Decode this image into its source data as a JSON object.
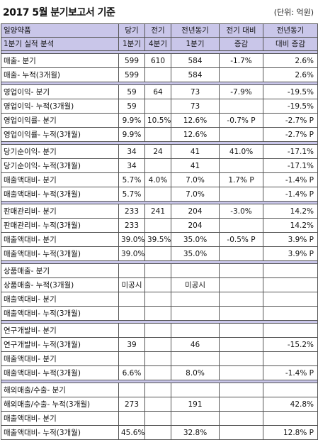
{
  "title": "2017 5월 분기보고서 기준",
  "unit": "(단위: 억원)",
  "header": {
    "row1": [
      "일양약품",
      "당기",
      "전기",
      "전년동기",
      "전기 대비",
      "전년동기"
    ],
    "row2": [
      "1분기 실적 분석",
      "1분기",
      "4분기",
      "1분기",
      "증감",
      "대비 증감"
    ]
  },
  "groups": [
    {
      "rows": [
        [
          "매출- 분기",
          "599",
          "610",
          "584",
          "-1.7%",
          "2.6%"
        ],
        [
          "매출- 누적(3개월)",
          "599",
          "",
          "584",
          "",
          "2.6%"
        ]
      ]
    },
    {
      "rows": [
        [
          "영업이익- 분기",
          "59",
          "64",
          "73",
          "-7.9%",
          "-19.5%"
        ],
        [
          "영업이익- 누적(3개월)",
          "59",
          "",
          "73",
          "",
          "-19.5%"
        ],
        [
          "영업이익률- 분기",
          "9.9%",
          "10.5%",
          "12.6%",
          "-0.7% P",
          "-2.7% P"
        ],
        [
          "영업이익률- 누적(3개월)",
          "9.9%",
          "",
          "12.6%",
          "",
          "-2.7% P"
        ]
      ]
    },
    {
      "rows": [
        [
          "당기순이익- 분기",
          "34",
          "24",
          "41",
          "41.0%",
          "-17.1%"
        ],
        [
          "당기순이익- 누적(3개월)",
          "34",
          "",
          "41",
          "",
          "-17.1%"
        ],
        [
          "매출액대비- 분기",
          "5.7%",
          "4.0%",
          "7.0%",
          "1.7% P",
          "-1.4% P"
        ],
        [
          "매출액대비- 누적(3개월)",
          "5.7%",
          "",
          "7.0%",
          "",
          "-1.4% P"
        ]
      ]
    },
    {
      "rows": [
        [
          "판매관리비- 분기",
          "233",
          "241",
          "204",
          "-3.0%",
          "14.2%"
        ],
        [
          "판매관리비- 누적(3개월)",
          "233",
          "",
          "204",
          "",
          "14.2%"
        ],
        [
          "매출액대비- 분기",
          "39.0%",
          "39.5%",
          "35.0%",
          "-0.5% P",
          "3.9% P"
        ],
        [
          "매출액대비- 누적(3개월)",
          "39.0%",
          "",
          "35.0%",
          "",
          "3.9% P"
        ]
      ]
    },
    {
      "rows": [
        [
          "상품매출- 분기",
          "",
          "",
          "",
          "",
          ""
        ],
        [
          "상품매출- 누적(3개월)",
          "미공시",
          "",
          "미공시",
          "",
          ""
        ],
        [
          "매출액대비- 분기",
          "",
          "",
          "",
          "",
          ""
        ],
        [
          "매출액대비- 누적(3개월)",
          "",
          "",
          "",
          "",
          ""
        ]
      ]
    },
    {
      "rows": [
        [
          "연구개발비- 분기",
          "",
          "",
          "",
          "",
          ""
        ],
        [
          "연구개발비- 누적(3개월)",
          "39",
          "",
          "46",
          "",
          "-15.2%"
        ],
        [
          "매출액대비- 분기",
          "",
          "",
          "",
          "",
          ""
        ],
        [
          "매출액대비- 누적(3개월)",
          "6.6%",
          "",
          "8.0%",
          "",
          "-1.4% P"
        ]
      ]
    },
    {
      "rows": [
        [
          "해외매출/수출- 분기",
          "",
          "",
          "",
          "",
          ""
        ],
        [
          "해외매출/수출- 누적(3개월)",
          "273",
          "",
          "191",
          "",
          "42.8%"
        ],
        [
          "매출액대비- 분기",
          "",
          "",
          "",
          "",
          ""
        ],
        [
          "매출액대비- 누적(3개월)",
          "45.6%",
          "",
          "32.8%",
          "",
          "12.8% P"
        ]
      ]
    }
  ]
}
